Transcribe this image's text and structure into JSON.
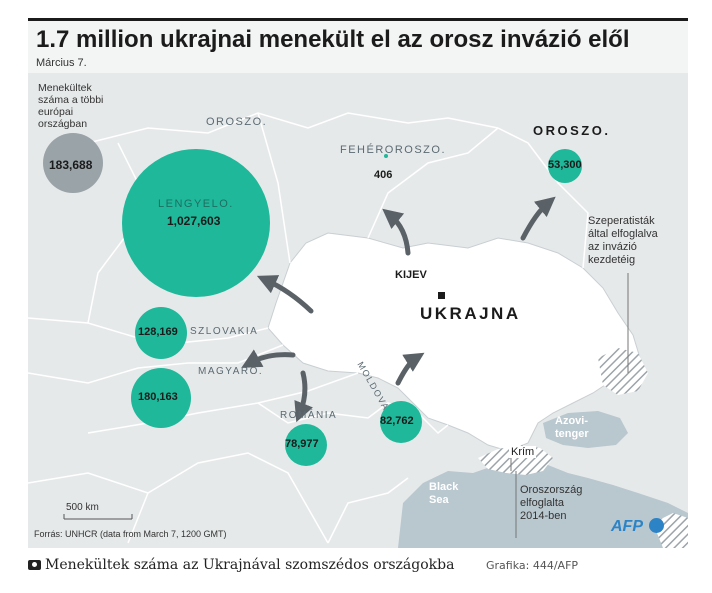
{
  "title": "1.7 million ukrajnai menekült el az orosz invázió elől",
  "date": "Március 7.",
  "legend_text": [
    "Menekültek",
    "száma a többi",
    "európai",
    "országban"
  ],
  "legend_value": "183,688",
  "countries": {
    "russia_nw": "OROSZO.",
    "belarus": "FEHÉROROSZO.",
    "russia_e": "OROSZO.",
    "poland": "LENGYELO.",
    "slovakia": "SZLOVAKIA",
    "hungary": "MAGYARO.",
    "romania": "ROMÁNIA",
    "moldova": "MOLDOVA",
    "ukraine": "UKRAJNA"
  },
  "refugees": {
    "poland": "1,027,603",
    "belarus": "406",
    "russia": "53,300",
    "slovakia": "128,169",
    "hungary": "180,163",
    "romania": "78,977",
    "moldova": "82,762"
  },
  "capital": "KIJEV",
  "separatist_note": [
    "Szeperatisták",
    "által elfoglalva",
    "az invázió",
    "kezdetéig"
  ],
  "azov": [
    "Azovi-",
    "tenger"
  ],
  "black_sea": [
    "Black",
    "Sea"
  ],
  "crimea": "Krím",
  "crimea_note": [
    "Oroszország",
    "elfoglalta",
    "2014-ben"
  ],
  "scale": "500 km",
  "source": "Forrás: UNHCR (data from March 7, 1200 GMT)",
  "agency": "AFP",
  "caption": "Menekültek száma az Ukrajnával szomszédos országokba",
  "credit": "Grafika: 444/AFP",
  "colors": {
    "bubble": "#1fb89a",
    "legend_bubble": "#9aa3a8",
    "land": "#e6e9ea",
    "ukraine": "#ffffff",
    "sea": "#b9c7cf",
    "arrow": "#5a6268"
  }
}
